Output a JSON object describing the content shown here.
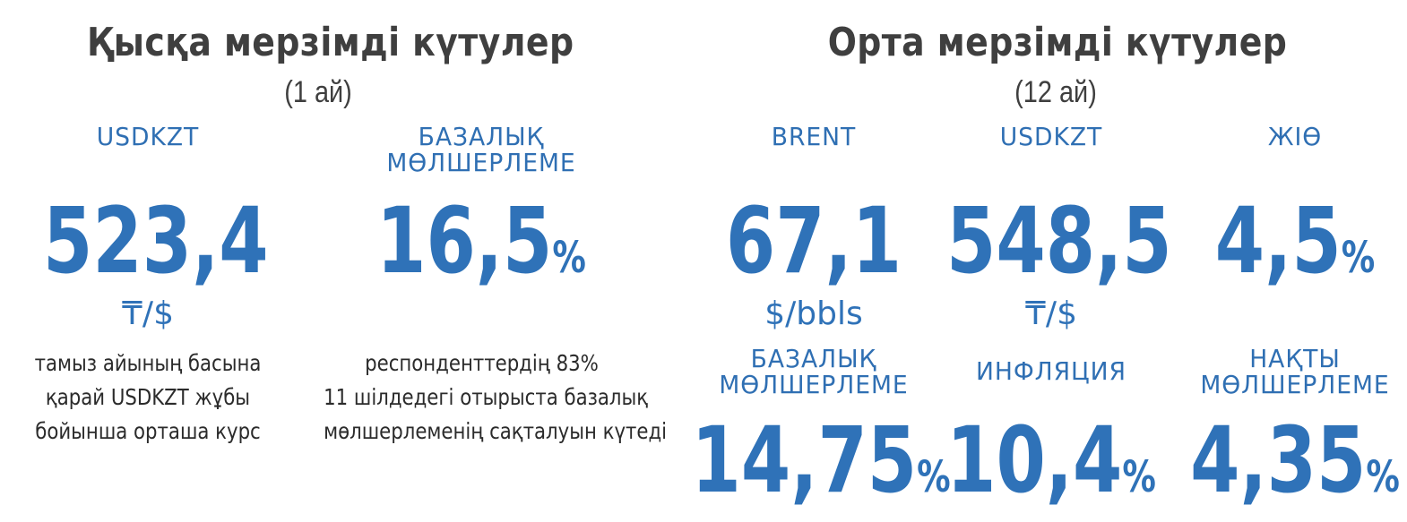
{
  "short_term": {
    "title": "Қысқа мерзімді күтулер",
    "period": "(1 ай)",
    "usdkzt": {
      "label": "USDKZT",
      "value": "523,4",
      "unit": "₸/$",
      "desc": [
        "тамыз айының басына",
        "қарай USDKZT жұбы",
        "бойынша орташа курс"
      ]
    },
    "base_rate": {
      "label_lines": [
        "БАЗАЛЫҚ",
        "МӨЛШЕРЛЕМЕ"
      ],
      "value": "16,5",
      "pct": "%",
      "desc": [
        "респонденттердің 83%",
        "11 шілдедегі отырыста базалық",
        "мөлшерлеменің сақталуын күтеді"
      ]
    }
  },
  "medium_term": {
    "title": "Орта мерзімді күтулер",
    "period": "(12 ай)",
    "brent": {
      "label": "BRENT",
      "value": "67,1",
      "unit": "$/bbls"
    },
    "usdkzt": {
      "label": "USDKZT",
      "value": "548,5",
      "unit": "₸/$"
    },
    "gdp": {
      "label": "ЖІӨ",
      "value": "4,5",
      "pct": "%"
    },
    "base_rate": {
      "label_lines": [
        "БАЗАЛЫҚ",
        "МӨЛШЕРЛЕМЕ"
      ],
      "value": "14,75",
      "pct": "%"
    },
    "inflation": {
      "label": "ИНФЛЯЦИЯ",
      "value": "10,4",
      "pct": "%"
    },
    "real_rate": {
      "label_lines": [
        "НАҚТЫ",
        "МӨЛШЕРЛЕМЕ"
      ],
      "value": "4,35",
      "pct": "%"
    }
  },
  "colors": {
    "accent": "#2f72b8",
    "label": "#2f6fb3",
    "title": "#3f3f3f"
  }
}
